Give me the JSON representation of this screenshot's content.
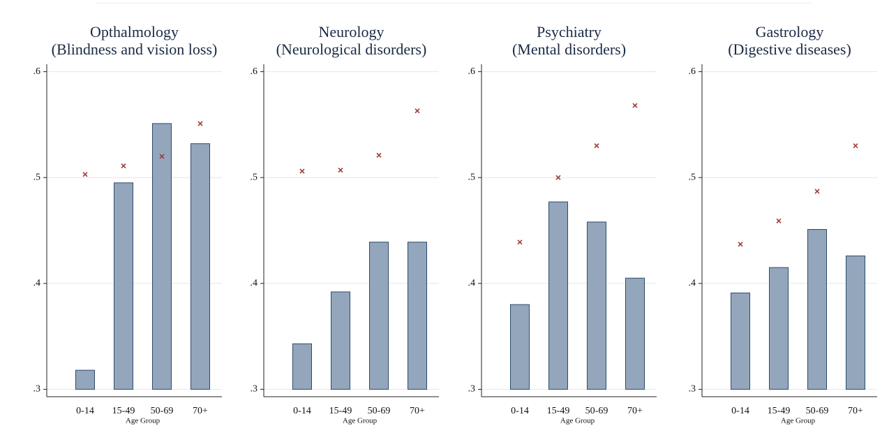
{
  "chart_data": [
    {
      "type": "bar",
      "title": [
        "Opthalmology",
        "(Blindness and vision loss)"
      ],
      "xlabel": "Age Group",
      "categories": [
        "0-14",
        "15-49",
        "50-69",
        "70+"
      ],
      "series": [
        {
          "color": "#94a6bb",
          "values": [
            0.318,
            0.495,
            0.551,
            0.532
          ]
        },
        {
          "color": "#a03a3a",
          "marker": "x",
          "values": [
            0.503,
            0.511,
            0.52,
            0.551
          ]
        }
      ],
      "ylim": [
        0.293,
        0.607
      ],
      "yticks": [
        {
          "value": 0.3,
          "label": ".3"
        },
        {
          "value": 0.4,
          "label": ".4"
        },
        {
          "value": 0.5,
          "label": ".5"
        },
        {
          "value": 0.6,
          "label": ".6"
        }
      ],
      "grid": true
    },
    {
      "type": "bar",
      "title": [
        "Neurology",
        "(Neurological disorders)"
      ],
      "xlabel": "Age Group",
      "categories": [
        "0-14",
        "15-49",
        "50-69",
        "70+"
      ],
      "series": [
        {
          "color": "#94a6bb",
          "values": [
            0.343,
            0.392,
            0.439,
            0.439
          ]
        },
        {
          "color": "#a03a3a",
          "marker": "x",
          "values": [
            0.506,
            0.507,
            0.521,
            0.563
          ]
        }
      ],
      "ylim": [
        0.293,
        0.607
      ],
      "yticks": [
        {
          "value": 0.3,
          "label": ".3"
        },
        {
          "value": 0.4,
          "label": ".4"
        },
        {
          "value": 0.5,
          "label": ".5"
        },
        {
          "value": 0.6,
          "label": ".6"
        }
      ],
      "grid": true
    },
    {
      "type": "bar",
      "title": [
        "Psychiatry",
        "(Mental disorders)"
      ],
      "xlabel": "Age Group",
      "categories": [
        "0-14",
        "15-49",
        "50-69",
        "70+"
      ],
      "series": [
        {
          "color": "#94a6bb",
          "values": [
            0.38,
            0.477,
            0.458,
            0.405
          ]
        },
        {
          "color": "#a03a3a",
          "marker": "x",
          "values": [
            0.439,
            0.5,
            0.53,
            0.568
          ]
        }
      ],
      "ylim": [
        0.293,
        0.607
      ],
      "yticks": [
        {
          "value": 0.3,
          "label": ".3"
        },
        {
          "value": 0.4,
          "label": ".4"
        },
        {
          "value": 0.5,
          "label": ".5"
        },
        {
          "value": 0.6,
          "label": ".6"
        }
      ],
      "grid": true
    },
    {
      "type": "bar",
      "title": [
        "Gastrology",
        "(Digestive diseases)"
      ],
      "xlabel": "Age Group",
      "categories": [
        "0-14",
        "15-49",
        "50-69",
        "70+"
      ],
      "series": [
        {
          "color": "#94a6bb",
          "values": [
            0.391,
            0.415,
            0.451,
            0.426
          ]
        },
        {
          "color": "#a03a3a",
          "marker": "x",
          "values": [
            0.437,
            0.459,
            0.487,
            0.53
          ]
        }
      ],
      "ylim": [
        0.293,
        0.607
      ],
      "yticks": [
        {
          "value": 0.3,
          "label": ".3"
        },
        {
          "value": 0.4,
          "label": ".4"
        },
        {
          "value": 0.5,
          "label": ".5"
        },
        {
          "value": 0.6,
          "label": ".6"
        }
      ],
      "grid": true
    }
  ]
}
